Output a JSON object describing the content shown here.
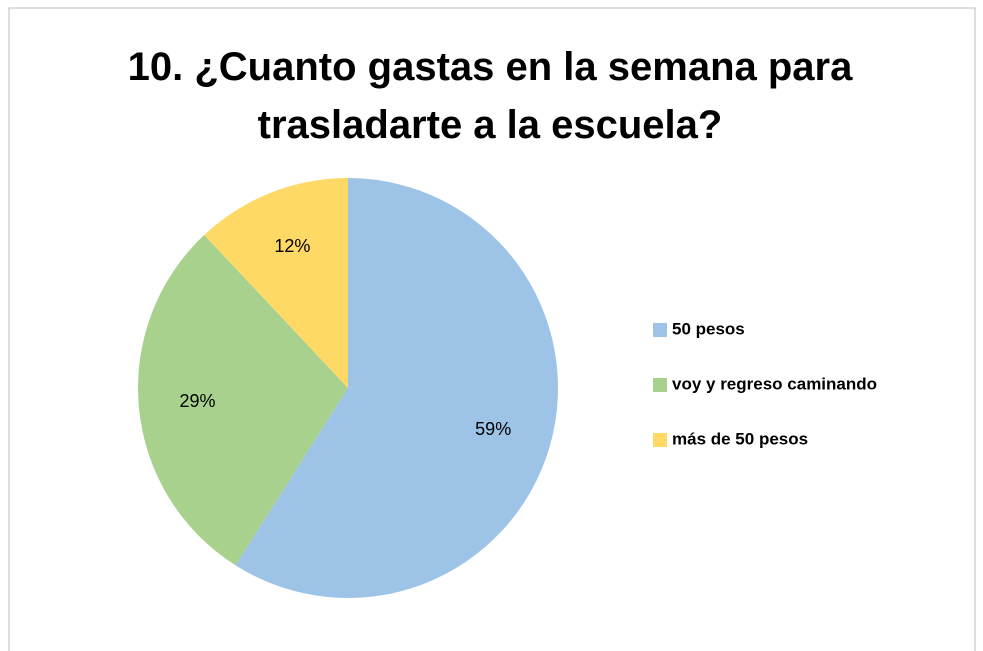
{
  "chart_data": {
    "type": "pie",
    "title": "10. ¿Cuanto gastas en la semana para trasladarte a la escuela?",
    "categories": [
      "50 pesos",
      "voy y regreso caminando",
      "más de 50 pesos"
    ],
    "values": [
      59,
      29,
      12
    ],
    "value_labels": [
      "59%",
      "29%",
      "12%"
    ],
    "colors": [
      "#9dc3e6",
      "#a9d18e",
      "#ffd966"
    ],
    "legend": "right"
  }
}
